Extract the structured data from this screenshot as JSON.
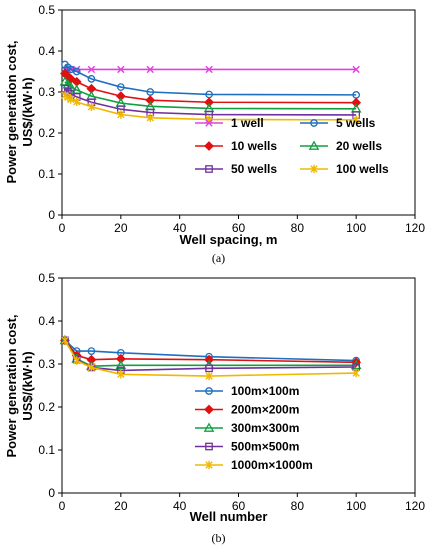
{
  "chart_data": [
    {
      "type": "line",
      "caption": "(a)",
      "xlabel": "Well spacing, m",
      "ylabel_line1": "Power generation cost,",
      "ylabel_line2": "US$/(kW·h)",
      "xlim": [
        0,
        120
      ],
      "ylim": [
        0,
        0.5
      ],
      "xticks": [
        "0",
        "20",
        "40",
        "60",
        "80",
        "100",
        "120"
      ],
      "yticks": [
        "0",
        "0.1",
        "0.2",
        "0.3",
        "0.4",
        "0.5"
      ],
      "grid": false,
      "legend_location": "right",
      "series": [
        {
          "name": "1 well",
          "color": "#e040e0",
          "marker": "x",
          "x": [
            1,
            2,
            3,
            5,
            10,
            20,
            30,
            50,
            100
          ],
          "y": [
            0.355,
            0.355,
            0.355,
            0.355,
            0.355,
            0.355,
            0.355,
            0.355,
            0.355
          ]
        },
        {
          "name": "5 wells",
          "color": "#1f6fbf",
          "marker": "circle",
          "x": [
            1,
            2,
            3,
            5,
            10,
            20,
            30,
            50,
            100
          ],
          "y": [
            0.367,
            0.36,
            0.355,
            0.35,
            0.332,
            0.312,
            0.3,
            0.294,
            0.293
          ]
        },
        {
          "name": "10 wells",
          "color": "#e01010",
          "marker": "diamond",
          "x": [
            1,
            2,
            3,
            5,
            10,
            20,
            30,
            50,
            100
          ],
          "y": [
            0.345,
            0.338,
            0.332,
            0.325,
            0.308,
            0.29,
            0.28,
            0.275,
            0.274
          ]
        },
        {
          "name": "20 wells",
          "color": "#10a040",
          "marker": "triangle",
          "x": [
            1,
            2,
            3,
            5,
            10,
            20,
            30,
            50,
            100
          ],
          "y": [
            0.325,
            0.318,
            0.312,
            0.305,
            0.29,
            0.273,
            0.265,
            0.26,
            0.259
          ]
        },
        {
          "name": "50 wells",
          "color": "#7030a0",
          "marker": "square",
          "x": [
            1,
            2,
            3,
            5,
            10,
            20,
            30,
            50,
            100
          ],
          "y": [
            0.308,
            0.3,
            0.295,
            0.288,
            0.275,
            0.258,
            0.25,
            0.245,
            0.244
          ]
        },
        {
          "name": "100 wells",
          "color": "#f0b800",
          "marker": "star",
          "x": [
            1,
            2,
            3,
            5,
            10,
            20,
            30,
            50,
            100
          ],
          "y": [
            0.292,
            0.287,
            0.282,
            0.276,
            0.264,
            0.245,
            0.237,
            0.233,
            0.232
          ]
        }
      ]
    },
    {
      "type": "line",
      "caption": "(b)",
      "xlabel": "Well number",
      "ylabel_line1": "Power generation cost,",
      "ylabel_line2": "US$/(kW·h)",
      "xlim": [
        0,
        120
      ],
      "ylim": [
        0,
        0.5
      ],
      "xticks": [
        "0",
        "20",
        "40",
        "60",
        "80",
        "100",
        "120"
      ],
      "yticks": [
        "0",
        "0.1",
        "0.2",
        "0.3",
        "0.4",
        "0.5"
      ],
      "grid": false,
      "legend_location": "right",
      "series": [
        {
          "name": "100m×100m",
          "color": "#1f6fbf",
          "marker": "circle",
          "x": [
            1,
            5,
            10,
            20,
            50,
            100
          ],
          "y": [
            0.355,
            0.33,
            0.33,
            0.326,
            0.317,
            0.308
          ]
        },
        {
          "name": "200m×200m",
          "color": "#e01010",
          "marker": "diamond",
          "x": [
            1,
            5,
            10,
            20,
            50,
            100
          ],
          "y": [
            0.355,
            0.32,
            0.31,
            0.312,
            0.31,
            0.304
          ]
        },
        {
          "name": "300m×300m",
          "color": "#10a040",
          "marker": "triangle",
          "x": [
            1,
            5,
            10,
            20,
            50,
            100
          ],
          "y": [
            0.355,
            0.312,
            0.295,
            0.297,
            0.297,
            0.297
          ]
        },
        {
          "name": "500m×500m",
          "color": "#7030a0",
          "marker": "square",
          "x": [
            1,
            5,
            10,
            20,
            50,
            100
          ],
          "y": [
            0.355,
            0.31,
            0.292,
            0.285,
            0.29,
            0.293
          ]
        },
        {
          "name": "1000m×1000m",
          "color": "#f0b800",
          "marker": "star",
          "x": [
            1,
            5,
            10,
            20,
            50,
            100
          ],
          "y": [
            0.355,
            0.308,
            0.292,
            0.276,
            0.272,
            0.279
          ]
        }
      ]
    }
  ]
}
